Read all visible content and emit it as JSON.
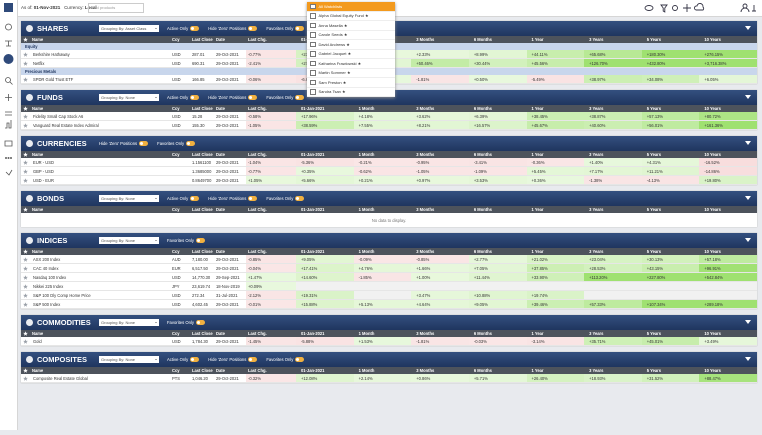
{
  "topbar": {
    "as_of_label": "As of:",
    "as_of": "01-Nov-2021",
    "currency_label": "Currency:",
    "currency": "Local",
    "search_placeholder": "Find products"
  },
  "watchlist_menu": {
    "header": "All Watchlists",
    "items": [
      "Alpha Global Equity Fund ★",
      "Anna Masella ★",
      "Carole Seeds ★",
      "David Andrews ★",
      "Gabriel Jacquet ★",
      "Katharina Frawlowski ★",
      "Martin Sommer ★",
      "Sam Preston ★",
      "Sandra Tsan ★"
    ]
  },
  "columns": [
    "Name",
    "Ccy",
    "Last Close",
    "Date",
    "Last Chg.",
    "01-Jan-2021",
    "1 Month",
    "3 Months",
    "6 Months",
    "1 Year",
    "3 Years",
    "5 Years",
    "10 Years"
  ],
  "sections": [
    {
      "title": "SHARES",
      "grouping": "Grouping By: Asset Class",
      "toggles": [
        "Active Only",
        "Hide 'Zero' Positions",
        "Favorites Only"
      ],
      "groups": [
        {
          "name": "Equity",
          "rows": [
            [
              "Berkshire Hathaway",
              "USD",
              "287.01",
              "29-Oct-2021",
              "-0.77%",
              "+23.78%",
              "+1.08%",
              "+2.33%",
              "+8.99%",
              "+44.11%",
              "+65.68%",
              "+180.30%",
              "+276.15%"
            ],
            [
              "Netflix",
              "USD",
              "690.31",
              "29-Oct-2021",
              "-2.41%",
              "+27.66%",
              "+8.36%",
              "+50.46%",
              "+30.44%",
              "+45.56%",
              "+126.70%",
              "+432.80%",
              "+3,716.38%"
            ]
          ]
        },
        {
          "name": "Precious Metals",
          "rows": [
            [
              "SPDR Gold Trust ETF",
              "USD",
              "166.85",
              "29-Oct-2021",
              "-0.06%",
              "-6.69%",
              "+1.53%",
              "-1.81%",
              "+0.50%",
              "-5.49%",
              "+38.97%",
              "+34.08%",
              "+6.05%"
            ]
          ]
        }
      ]
    },
    {
      "title": "FUNDS",
      "grouping": "Grouping By: None",
      "toggles": [
        "Active Only",
        "Hide 'Zero' Positions",
        "Favorites Only"
      ],
      "rows": [
        [
          "Fidelity Small Cap Stock A6",
          "USD",
          "15.28",
          "29-Oct-2021",
          "-0.58%",
          "+17.96%",
          "+4.18%",
          "+3.62%",
          "+6.39%",
          "+38.45%",
          "+38.87%",
          "+57.13%",
          "+80.72%"
        ],
        [
          "Vanguard Real Estate Index Admiral",
          "USD",
          "155.30",
          "29-Oct-2021",
          "-1.05%",
          "+38.59%",
          "+7.55%",
          "+8.21%",
          "+16.57%",
          "+45.67%",
          "+40.60%",
          "+56.01%",
          "+161.36%"
        ]
      ]
    },
    {
      "title": "CURRENCIES",
      "grouping": null,
      "toggles": [
        "Hide 'Zero' Positions",
        "Favorites Only"
      ],
      "rows": [
        [
          "EUR - USD",
          "",
          "1.1561100",
          "29-Oct-2021",
          "-1.04%",
          "-5.36%",
          "-0.21%",
          "-0.95%",
          "-3.41%",
          "-0.36%",
          "+1.40%",
          "+4.31%",
          "-16.52%"
        ],
        [
          "GBP - USD",
          "",
          "1.3685000",
          "29-Oct-2021",
          "-0.77%",
          "+0.35%",
          "-0.62%",
          "-1.05%",
          "-1.09%",
          "+5.45%",
          "+7.17%",
          "+11.21%",
          "-14.86%"
        ],
        [
          "USD - EUR",
          "",
          "0.8649700",
          "29-Oct-2021",
          "+1.05%",
          "+5.66%",
          "+0.21%",
          "+0.97%",
          "+3.53%",
          "+0.36%",
          "-1.38%",
          "-4.13%",
          "+19.80%"
        ]
      ]
    },
    {
      "title": "BONDS",
      "grouping": "Grouping By: None",
      "toggles": [
        "Active Only",
        "Hide 'Zero' Positions",
        "Favorites Only"
      ],
      "rows": [],
      "empty_message": "No data to display."
    },
    {
      "title": "INDICES",
      "grouping": "Grouping By: None",
      "toggles": [
        "Favorites Only"
      ],
      "rows": [
        [
          "ASX 200 Index",
          "AUD",
          "7,180.00",
          "29-Oct-2021",
          "-0.85%",
          "+9.05%",
          "-0.09%",
          "-0.85%",
          "+2.77%",
          "+21.02%",
          "+23.04%",
          "+30.13%",
          "+57.18%"
        ],
        [
          "CAC 40 Index",
          "EUR",
          "6,517.50",
          "29-Oct-2021",
          "-0.04%",
          "+17.41%",
          "+4.76%",
          "+1.66%",
          "+7.05%",
          "+37.85%",
          "+28.53%",
          "+43.15%",
          "+96.91%"
        ],
        [
          "Nasdaq 100 Index",
          "USD",
          "14,770.30",
          "29-Sep-2021",
          "+1.47%",
          "+14.60%",
          "-1.85%",
          "+1.00%",
          "+11.44%",
          "+33.90%",
          "+113.20%",
          "+227.80%",
          "+542.84%"
        ],
        [
          "Nikkei 225 Index",
          "JPY",
          "23,619.74",
          "18-Nov-2019",
          "+0.09%",
          null,
          null,
          null,
          null,
          null,
          null,
          null,
          null
        ],
        [
          "S&P 100 Dly Comp Home Price",
          "USD",
          "272.34",
          "31-Jul-2021",
          "-2.12%",
          "+19.31%",
          null,
          "+3.47%",
          "+10.88%",
          "+19.74%",
          null,
          null,
          null
        ],
        [
          "S&P 500 Index",
          "USD",
          "4,602.45",
          "29-Oct-2021",
          "-0.01%",
          "+15.88%",
          "+5.13%",
          "+4.64%",
          "+9.05%",
          "+39.46%",
          "+57.33%",
          "+107.34%",
          "+289.18%"
        ]
      ]
    },
    {
      "title": "COMMODITIES",
      "grouping": "Grouping By: None",
      "toggles": [
        "Favorites Only"
      ],
      "rows": [
        [
          "Gold",
          "USD",
          "1,784.30",
          "29-Oct-2021",
          "-1.45%",
          "-5.88%",
          "+1.53%",
          "-1.81%",
          "-0.03%",
          "-3.14%",
          "+35.71%",
          "+45.01%",
          "+3.49%"
        ]
      ]
    },
    {
      "title": "COMPOSITES",
      "grouping": "Grouping By: None",
      "toggles": [
        "Active Only",
        "Hide 'Zero' Positions",
        "Favorites Only"
      ],
      "rows": [
        [
          "Composite Real Estate Global",
          "PTS",
          "1,046.20",
          "29-Oct-2021",
          "-0.32%",
          "+12.08%",
          "+2.14%",
          "+0.86%",
          "+5.71%",
          "+26.40%",
          "+18.93%",
          "+31.52%",
          "+88.47%"
        ]
      ]
    }
  ]
}
